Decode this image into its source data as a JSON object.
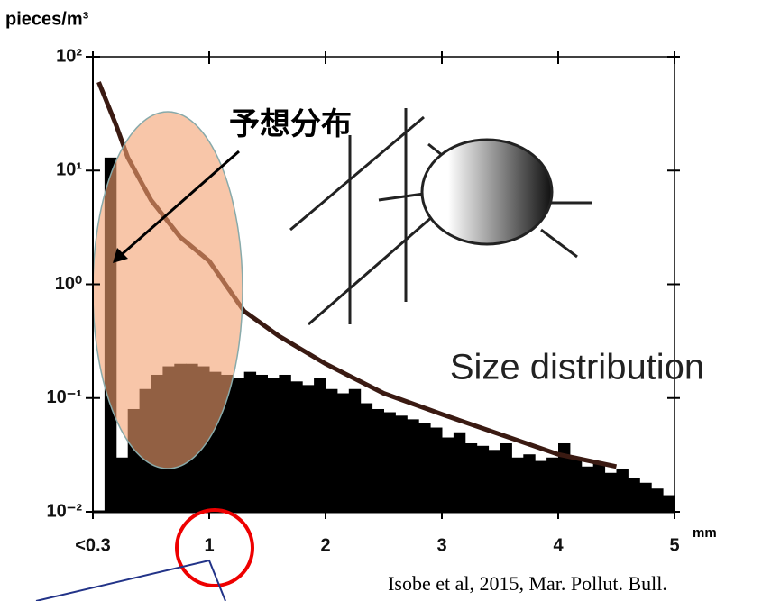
{
  "chart_data": {
    "type": "histogram",
    "y_label": "pieces/m³",
    "x_unit": "mm",
    "log_y": true,
    "color": "#000000",
    "bins": [
      0.1,
      0.2,
      0.3,
      0.4,
      0.5,
      0.6,
      0.7,
      0.8,
      0.9,
      1.0,
      1.1,
      1.2,
      1.3,
      1.4,
      1.5,
      1.6,
      1.7,
      1.8,
      1.9,
      2.0,
      2.1,
      2.2,
      2.3,
      2.4,
      2.5,
      2.6,
      2.7,
      2.8,
      2.9,
      3.0,
      3.1,
      3.2,
      3.3,
      3.4,
      3.5,
      3.6,
      3.7,
      3.8,
      3.9,
      4.0,
      4.1,
      4.2,
      4.3,
      4.4,
      4.5,
      4.6,
      4.7,
      4.8,
      4.9,
      5.0
    ],
    "values": [
      13,
      0.03,
      0.08,
      0.12,
      0.16,
      0.19,
      0.2,
      0.2,
      0.19,
      0.17,
      0.16,
      0.15,
      0.17,
      0.16,
      0.15,
      0.16,
      0.14,
      0.13,
      0.15,
      0.12,
      0.11,
      0.12,
      0.09,
      0.08,
      0.075,
      0.07,
      0.065,
      0.06,
      0.055,
      0.045,
      0.05,
      0.04,
      0.038,
      0.035,
      0.04,
      0.03,
      0.032,
      0.028,
      0.03,
      0.04,
      0.03,
      0.025,
      0.027,
      0.022,
      0.024,
      0.02,
      0.018,
      0.016,
      0.014
    ],
    "curve": {
      "color": "#3a1a12",
      "x": [
        0.05,
        0.2,
        0.3,
        0.5,
        0.75,
        1,
        1.3,
        1.6,
        2,
        2.5,
        3,
        3.5,
        4,
        4.5
      ],
      "values": [
        60,
        25,
        13,
        5.5,
        2.6,
        1.6,
        0.58,
        0.35,
        0.2,
        0.11,
        0.072,
        0.048,
        0.032,
        0.025
      ]
    },
    "xlim": [
      0,
      5
    ],
    "xticks": [
      {
        "value": 0,
        "label": "<0.3"
      },
      1,
      2,
      3,
      4,
      5
    ],
    "ylim": [
      0.01,
      100
    ],
    "yticks": [
      {
        "value": 0.01,
        "label": "10⁻²"
      },
      {
        "value": 0.1,
        "label": "10⁻¹"
      },
      {
        "value": 1,
        "label": "10⁰"
      },
      {
        "value": 10,
        "label": "10¹"
      },
      {
        "value": 100,
        "label": "10²"
      }
    ],
    "annotations": [
      "予想分布",
      "Size distribution"
    ],
    "source": "Isobe et al, 2015, Mar. Pollut. Bull."
  }
}
